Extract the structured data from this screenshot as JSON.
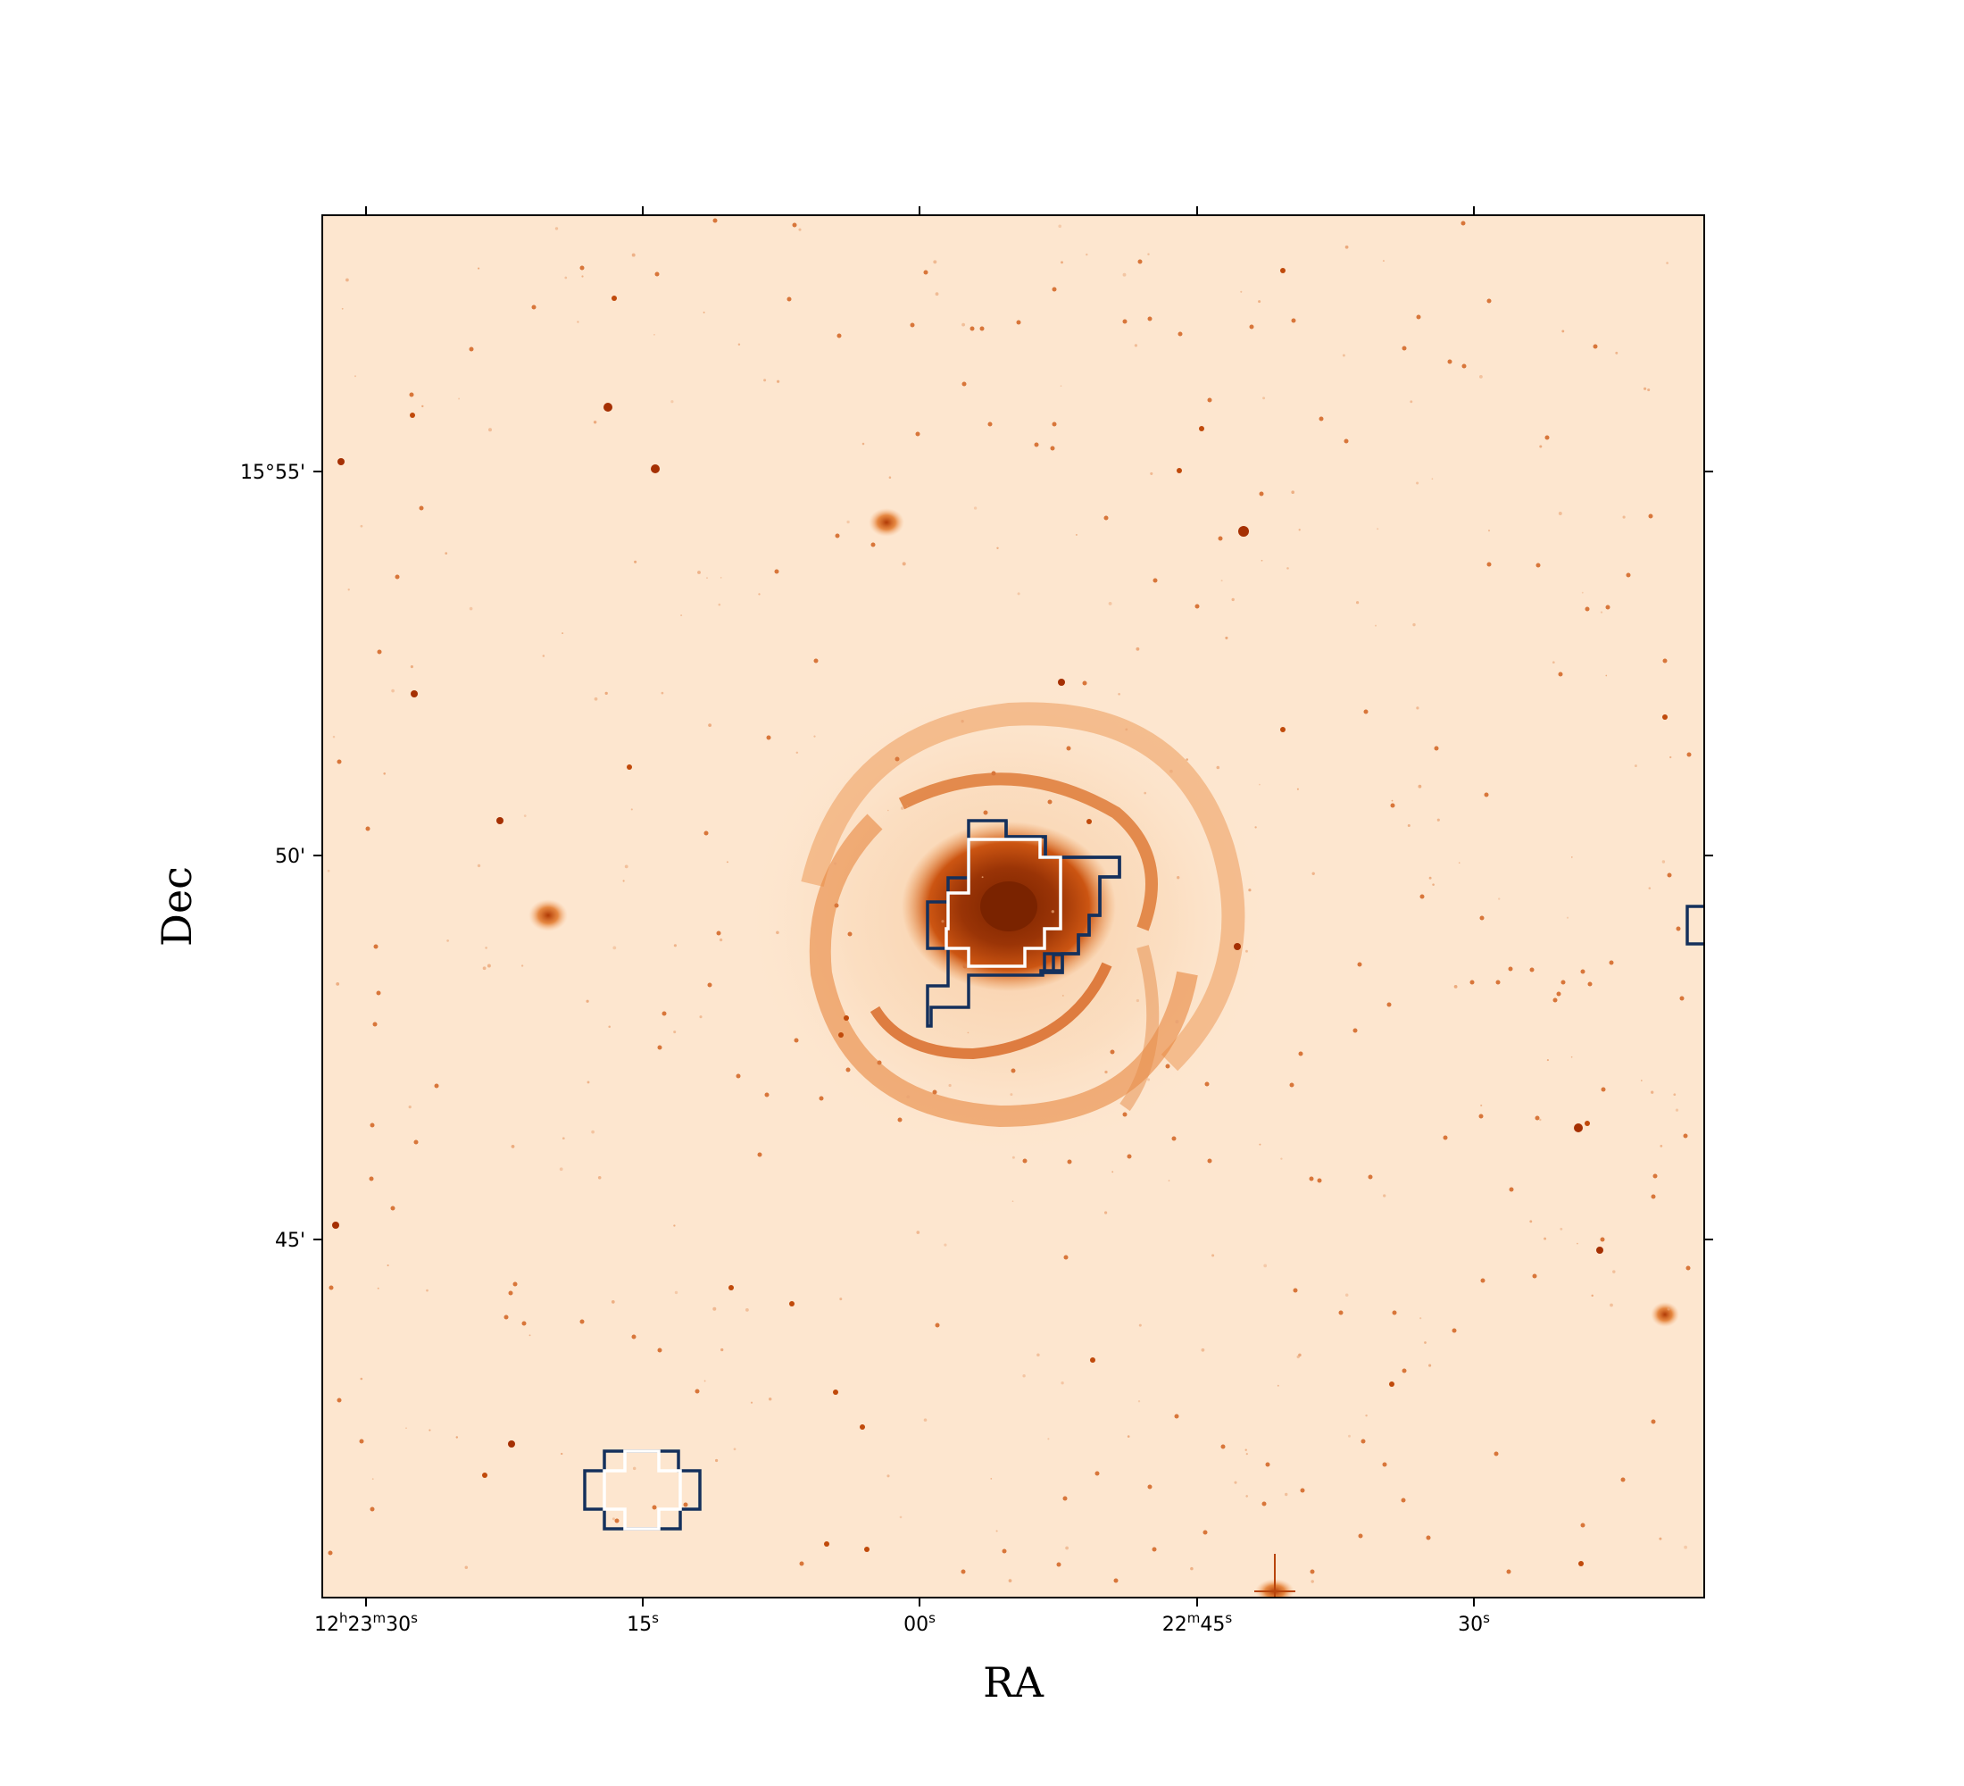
{
  "figure": {
    "x_axis_label": "RA",
    "y_axis_label": "Dec",
    "x_ticks": [
      {
        "label": "12h23m30s",
        "html": "12<tspan baseline-shift='super' font-size='15'>h</tspan>23<tspan baseline-shift='super' font-size='15'>m</tspan>30<tspan baseline-shift='super' font-size='15'>s</tspan>"
      },
      {
        "label": "15s"
      },
      {
        "label": "00s"
      },
      {
        "label": "22m45s"
      },
      {
        "label": "30s"
      }
    ],
    "y_ticks": [
      {
        "label": "15°55'"
      },
      {
        "label": "50'"
      },
      {
        "label": "45'"
      }
    ],
    "colors": {
      "background": "#fde6cf",
      "galaxy_core": "#8a2a02",
      "galaxy_arm": "#e06a1a",
      "contour_outer": "#14305c",
      "contour_inner": "#ffffff"
    }
  }
}
